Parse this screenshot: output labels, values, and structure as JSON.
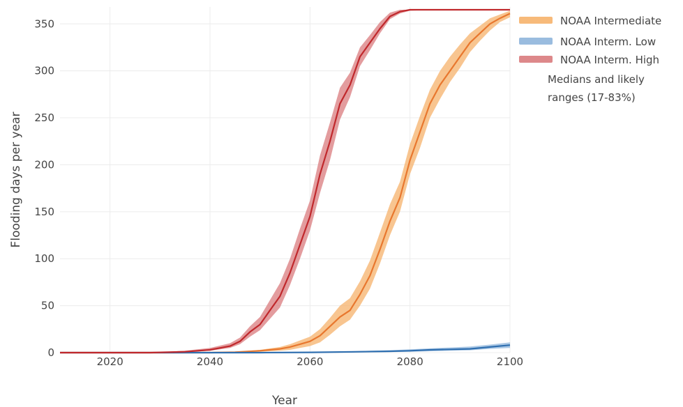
{
  "chart_data": {
    "type": "line",
    "xlabel": "Year",
    "ylabel": "Flooding days per year",
    "xlim": [
      2010,
      2100
    ],
    "ylim": [
      0,
      368
    ],
    "x_ticks": [
      2020,
      2040,
      2060,
      2080,
      2100
    ],
    "y_ticks": [
      0,
      50,
      100,
      150,
      200,
      250,
      300,
      350
    ],
    "grid": true,
    "legend_position": "top-right",
    "legend_note": [
      "Medians and likely",
      "ranges (17-83%)"
    ],
    "series": [
      {
        "name": "NOAA Intermediate",
        "color": "#e8772e",
        "band_color": "#f6b26b",
        "x": [
          2010,
          2040,
          2045,
          2050,
          2054,
          2056,
          2058,
          2060,
          2062,
          2064,
          2066,
          2068,
          2070,
          2072,
          2074,
          2076,
          2078,
          2080,
          2082,
          2084,
          2086,
          2088,
          2090,
          2092,
          2094,
          2096,
          2098,
          2100
        ],
        "median": [
          0,
          0,
          0.5,
          2,
          4,
          6,
          9,
          12,
          18,
          28,
          38,
          45,
          62,
          82,
          110,
          140,
          165,
          205,
          235,
          265,
          285,
          300,
          315,
          330,
          340,
          350,
          356,
          361
        ],
        "lower": [
          0,
          0,
          0,
          1,
          2,
          3,
          5,
          7,
          11,
          19,
          28,
          35,
          50,
          68,
          95,
          125,
          150,
          190,
          218,
          250,
          270,
          288,
          303,
          320,
          332,
          343,
          352,
          357
        ],
        "upper": [
          0,
          0,
          1,
          3,
          6,
          9,
          13,
          17,
          25,
          37,
          50,
          58,
          76,
          98,
          128,
          158,
          182,
          222,
          252,
          280,
          300,
          315,
          328,
          340,
          348,
          356,
          360,
          364
        ]
      },
      {
        "name": "NOAA Interm. Low",
        "color": "#2f6fb0",
        "band_color": "#8fb5dc",
        "x": [
          2010,
          2050,
          2060,
          2070,
          2076,
          2080,
          2084,
          2088,
          2092,
          2096,
          2100
        ],
        "median": [
          0,
          0,
          0.3,
          1,
          1.5,
          2,
          3,
          3.5,
          4,
          6,
          8
        ],
        "lower": [
          0,
          0,
          0,
          0.3,
          0.6,
          1,
          1.5,
          2,
          2.5,
          4,
          5
        ],
        "upper": [
          0,
          0,
          0.6,
          1.6,
          2.5,
          3.5,
          4.5,
          5.5,
          6.5,
          8.5,
          11
        ]
      },
      {
        "name": "NOAA Interm. High",
        "color": "#c0282c",
        "band_color": "#d97b7d",
        "x": [
          2010,
          2028,
          2035,
          2040,
          2044,
          2046,
          2048,
          2050,
          2052,
          2054,
          2056,
          2058,
          2060,
          2062,
          2064,
          2066,
          2068,
          2070,
          2072,
          2074,
          2076,
          2078,
          2080,
          2085,
          2090,
          2095,
          2100
        ],
        "median": [
          0,
          0,
          1,
          3,
          7,
          12,
          22,
          30,
          45,
          60,
          85,
          115,
          145,
          190,
          225,
          265,
          285,
          315,
          330,
          345,
          358,
          363,
          365,
          365,
          365,
          365,
          365
        ],
        "lower": [
          0,
          0,
          0.5,
          2,
          5,
          9,
          17,
          24,
          36,
          48,
          72,
          100,
          130,
          170,
          205,
          248,
          272,
          305,
          322,
          340,
          355,
          361,
          364,
          365,
          365,
          365,
          365
        ],
        "upper": [
          0,
          0,
          2,
          5,
          10,
          16,
          28,
          38,
          56,
          74,
          100,
          132,
          162,
          210,
          245,
          282,
          298,
          325,
          338,
          352,
          362,
          365,
          365,
          365,
          365,
          365,
          365
        ]
      }
    ]
  }
}
